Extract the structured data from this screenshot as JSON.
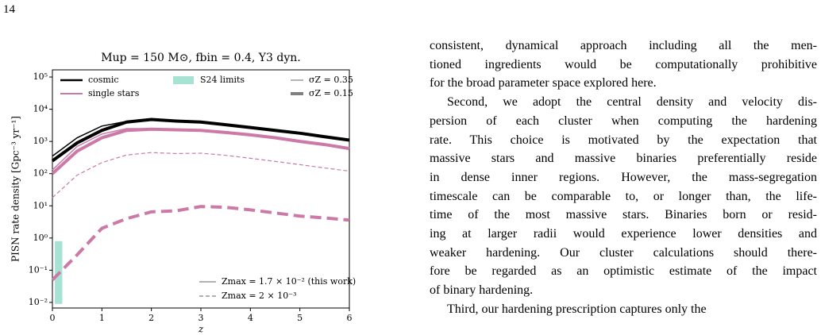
{
  "page_number": "14",
  "chart_data": {
    "type": "line",
    "title": "Mup = 150 M⊙, fbin = 0.4, Y3 dyn.",
    "xlabel": "z",
    "ylabel": "PISN rate density [Gpc⁻³ yr⁻¹]",
    "log_y": true,
    "x": [
      0,
      0.5,
      1,
      1.5,
      2,
      2.5,
      3,
      3.5,
      4,
      4.5,
      5,
      5.5,
      6
    ],
    "xlim": [
      0,
      6
    ],
    "xticks": [
      0,
      1,
      2,
      3,
      4,
      5,
      6
    ],
    "ylim": [
      0.0067,
      167000
    ],
    "yticks": [
      {
        "value": 0.01,
        "label": "10⁻²"
      },
      {
        "value": 0.1,
        "label": "10⁻¹"
      },
      {
        "value": 1,
        "label": "10⁰"
      },
      {
        "value": 10,
        "label": "10¹"
      },
      {
        "value": 100,
        "label": "10²"
      },
      {
        "value": 1000,
        "label": "10³"
      },
      {
        "value": 10000,
        "label": "10⁴"
      },
      {
        "value": 100000,
        "label": "10⁵"
      }
    ],
    "series": [
      {
        "color": "#000000",
        "linewidth": 1.5,
        "dash": false,
        "values": [
          350,
          1300,
          3000,
          4200,
          4500,
          4400,
          4100,
          3400,
          2800,
          2300,
          1850,
          1450,
          1150
        ]
      },
      {
        "color": "#000000",
        "linewidth": 4,
        "dash": false,
        "values": [
          250,
          900,
          2200,
          4000,
          4800,
          4300,
          4000,
          3300,
          2700,
          2200,
          1800,
          1400,
          1100
        ]
      },
      {
        "color": "#cc79a7",
        "linewidth": 1.5,
        "dash": false,
        "values": [
          130,
          700,
          1700,
          2500,
          2500,
          2300,
          2200,
          1900,
          1600,
          1300,
          1000,
          800,
          600
        ]
      },
      {
        "color": "#cc79a7",
        "linewidth": 4,
        "dash": false,
        "values": [
          100,
          500,
          1300,
          2200,
          2400,
          2300,
          2200,
          1900,
          1600,
          1300,
          1000,
          800,
          600
        ]
      },
      {
        "color": "#cc79a7",
        "linewidth": 1.2,
        "dash": true,
        "values": [
          18,
          90,
          220,
          380,
          450,
          420,
          430,
          370,
          300,
          240,
          190,
          150,
          120
        ]
      },
      {
        "color": "#cc79a7",
        "linewidth": 4,
        "dash": true,
        "values": [
          0.05,
          0.3,
          2,
          4,
          6.5,
          7,
          9.5,
          9,
          7.5,
          6,
          4.8,
          4.2,
          3.6
        ]
      }
    ],
    "band": {
      "color": "#a6e3d2",
      "x": [
        0.05,
        0.2
      ],
      "y": [
        0.009,
        0.8
      ]
    },
    "legend": [
      {
        "label": "cosmic",
        "color": "#000000",
        "linewidth": 2.5,
        "dash": false
      },
      {
        "label": "single stars",
        "color": "#cc79a7",
        "linewidth": 2,
        "dash": false
      },
      {
        "label": "S24 limits",
        "color": "#a6e3d2",
        "patch": true
      },
      {
        "label": "σZ = 0.35",
        "color": "#808080",
        "linewidth": 1.2,
        "dash": false
      },
      {
        "label": "σZ = 0.15",
        "color": "#808080",
        "linewidth": 4,
        "dash": false
      },
      {
        "label": "Zmax = 1.7 × 10⁻² (this work)",
        "color": "#808080",
        "linewidth": 1.2,
        "dash": false
      },
      {
        "label": "Zmax = 2 × 10⁻³",
        "color": "#808080",
        "linewidth": 1.2,
        "dash": true
      }
    ]
  },
  "paragraphs": [
    [
      "consistent, dynamical approach including all the men-",
      "tioned ingredients would be computationally prohibitive",
      "for the broad parameter space explored here."
    ],
    [
      "Second, we adopt the central density and velocity dis-",
      "persion of each cluster when computing the hardening",
      "rate. This choice is motivated by the expectation that",
      "massive stars and massive binaries preferentially reside",
      "in dense inner regions. However, the mass-segregation",
      "timescale can be comparable to, or longer than, the life-",
      "time of the most massive stars. Binaries born or resid-",
      "ing at larger radii would experience lower densities and",
      "weaker hardening. Our cluster calculations should there-",
      "fore be regarded as an optimistic estimate of the impact",
      "of binary hardening."
    ],
    [
      "Third, our hardening prescription captures only the"
    ]
  ]
}
